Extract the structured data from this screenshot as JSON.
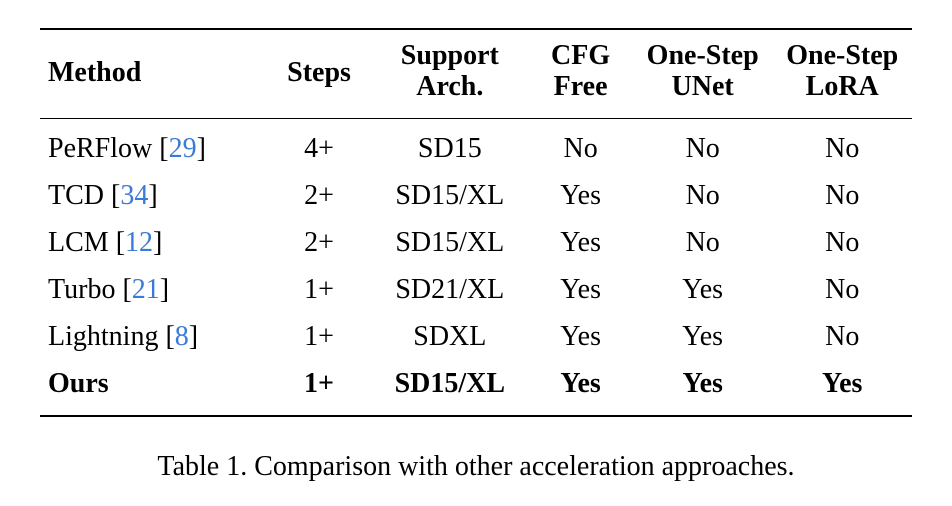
{
  "table": {
    "headers": {
      "method": "Method",
      "steps": "Steps",
      "support_l1": "Support",
      "support_l2": "Arch.",
      "cfg_l1": "CFG",
      "cfg_l2": "Free",
      "unet_l1": "One-Step",
      "unet_l2": "UNet",
      "lora_l1": "One-Step",
      "lora_l2": "LoRA"
    },
    "rows": [
      {
        "name": "PeRFlow ",
        "ref": "29",
        "steps": "4+",
        "arch": "SD15",
        "cfg": "No",
        "unet": "No",
        "lora": "No",
        "bold": false
      },
      {
        "name": "TCD ",
        "ref": "34",
        "steps": "2+",
        "arch": "SD15/XL",
        "cfg": "Yes",
        "unet": "No",
        "lora": "No",
        "bold": false
      },
      {
        "name": "LCM ",
        "ref": "12",
        "steps": "2+",
        "arch": "SD15/XL",
        "cfg": "Yes",
        "unet": "No",
        "lora": "No",
        "bold": false
      },
      {
        "name": "Turbo ",
        "ref": "21",
        "steps": "1+",
        "arch": "SD21/XL",
        "cfg": "Yes",
        "unet": "Yes",
        "lora": "No",
        "bold": false
      },
      {
        "name": "Lightning ",
        "ref": "8",
        "steps": "1+",
        "arch": "SDXL",
        "cfg": "Yes",
        "unet": "Yes",
        "lora": "No",
        "bold": false
      },
      {
        "name": "Ours",
        "ref": "",
        "steps": "1+",
        "arch": "SD15/XL",
        "cfg": "Yes",
        "unet": "Yes",
        "lora": "Yes",
        "bold": true
      }
    ],
    "caption": "Table 1. Comparison with other acceleration approaches.",
    "colors": {
      "link": "#3a7bd5",
      "text": "#000000",
      "bg": "#ffffff",
      "rule": "#000000"
    },
    "font_size_pt": 21,
    "caption_font_size_pt": 21
  }
}
